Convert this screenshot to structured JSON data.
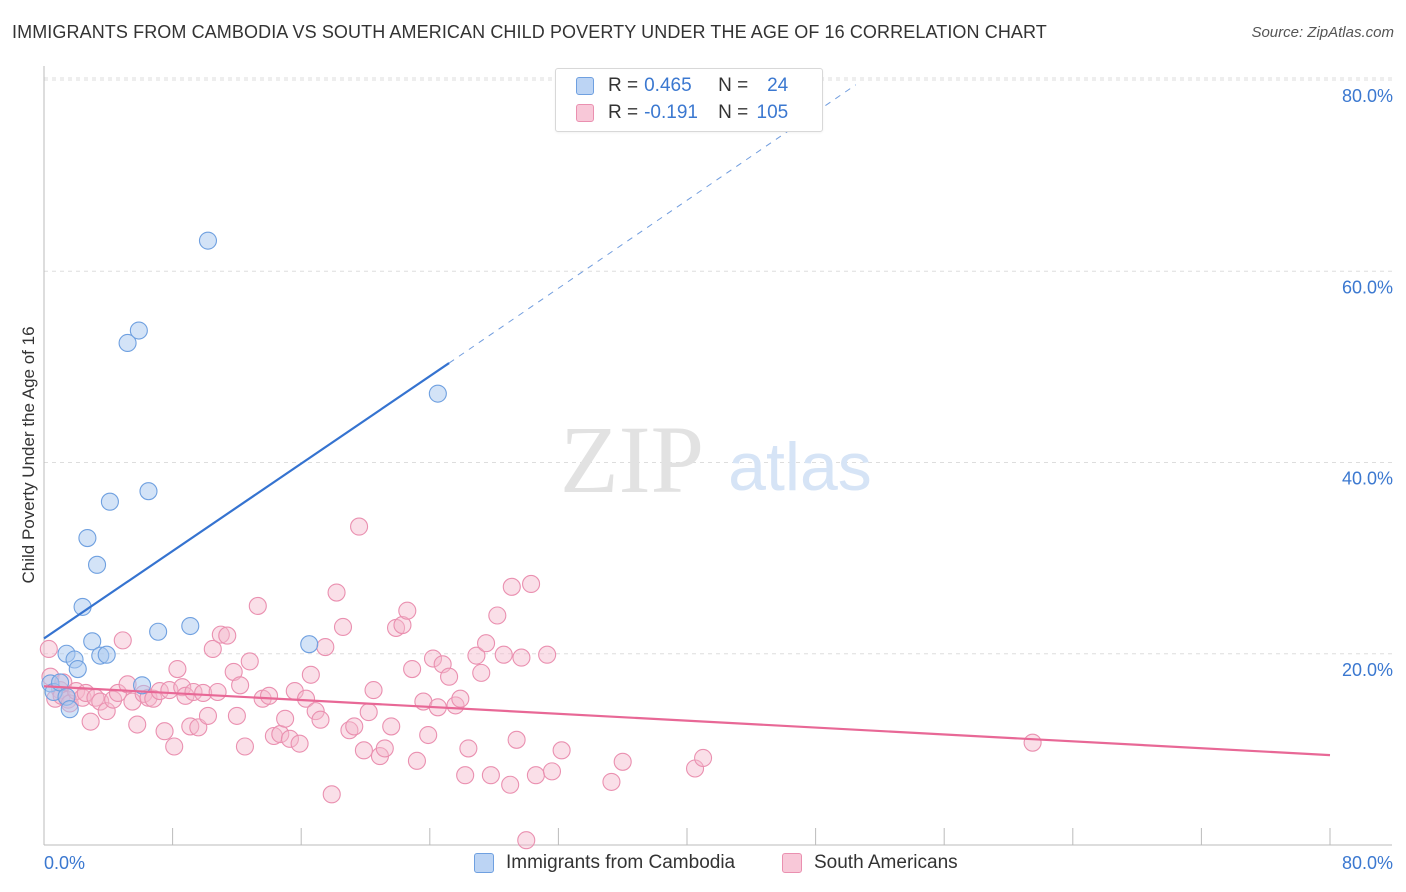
{
  "header": {
    "title": "IMMIGRANTS FROM CAMBODIA VS SOUTH AMERICAN CHILD POVERTY UNDER THE AGE OF 16 CORRELATION CHART",
    "source": "Source: ZipAtlas.com"
  },
  "watermark": {
    "zip": "ZIP",
    "atlas": "atlas"
  },
  "stats": {
    "r_label": "R =",
    "n_label": "N =",
    "rows": [
      {
        "r": "0.465",
        "n": "24"
      },
      {
        "r": "-0.191",
        "n": "105"
      }
    ]
  },
  "colors": {
    "blue_fill": "#a8c8f0",
    "blue_stroke": "#6fa0e0",
    "blue_line": "#3573d0",
    "pink_fill": "#f5b8cc",
    "pink_stroke": "#ea90b0",
    "pink_line": "#e86896",
    "axis_label": "#3b78d0",
    "grid": "#dddddd"
  },
  "chart_data": {
    "type": "scatter",
    "title": "IMMIGRANTS FROM CAMBODIA VS SOUTH AMERICAN CHILD POVERTY UNDER THE AGE OF 16 CORRELATION CHART",
    "xlabel": "",
    "ylabel": "Child Poverty Under the Age of 16",
    "xlim": [
      0,
      80
    ],
    "ylim": [
      0,
      80
    ],
    "x_tick_labels": [
      "0.0%",
      "80.0%"
    ],
    "y_tick_labels": [
      "20.0%",
      "40.0%",
      "60.0%",
      "80.0%"
    ],
    "y_ticks": [
      20,
      40,
      60,
      80
    ],
    "grid": true,
    "legend_position": "bottom-center",
    "series": [
      {
        "name": "Immigrants from Cambodia",
        "color": "blue",
        "r": 0.465,
        "n": 24,
        "trend": {
          "x_start": 0,
          "y_start": 21.6,
          "x_end": 25.2,
          "y_end": 50.4,
          "dashed_to_x": 50.5,
          "dashed_to_y": 79.5
        },
        "points": [
          [
            0.4,
            16.9
          ],
          [
            0.6,
            16.0
          ],
          [
            1.0,
            17.0
          ],
          [
            1.4,
            15.5
          ],
          [
            1.4,
            20.0
          ],
          [
            1.6,
            14.2
          ],
          [
            1.9,
            19.4
          ],
          [
            2.1,
            18.4
          ],
          [
            2.4,
            24.9
          ],
          [
            2.7,
            32.1
          ],
          [
            3.0,
            21.3
          ],
          [
            3.3,
            29.3
          ],
          [
            3.5,
            19.8
          ],
          [
            3.9,
            19.9
          ],
          [
            4.1,
            35.9
          ],
          [
            5.2,
            52.5
          ],
          [
            5.9,
            53.8
          ],
          [
            6.1,
            16.7
          ],
          [
            6.5,
            37.0
          ],
          [
            7.1,
            22.3
          ],
          [
            9.1,
            22.9
          ],
          [
            10.2,
            63.2
          ],
          [
            16.5,
            21.0
          ],
          [
            24.5,
            47.2
          ]
        ]
      },
      {
        "name": "South Americans",
        "color": "pink",
        "r": -0.191,
        "n": 105,
        "trend": {
          "x_start": 0,
          "y_start": 16.6,
          "x_end": 80,
          "y_end": 9.4
        },
        "points": [
          [
            0.3,
            20.5
          ],
          [
            0.4,
            17.6
          ],
          [
            0.7,
            15.3
          ],
          [
            1.0,
            16.2
          ],
          [
            1.1,
            15.6
          ],
          [
            1.2,
            17.0
          ],
          [
            1.5,
            15.2
          ],
          [
            1.6,
            14.8
          ],
          [
            2.0,
            16.1
          ],
          [
            2.4,
            15.4
          ],
          [
            2.6,
            15.9
          ],
          [
            2.9,
            12.9
          ],
          [
            3.2,
            15.4
          ],
          [
            3.5,
            15.0
          ],
          [
            3.9,
            14.0
          ],
          [
            4.3,
            15.2
          ],
          [
            4.6,
            15.9
          ],
          [
            4.9,
            21.4
          ],
          [
            5.2,
            16.8
          ],
          [
            5.5,
            15.0
          ],
          [
            5.8,
            12.6
          ],
          [
            6.2,
            15.8
          ],
          [
            6.5,
            15.4
          ],
          [
            6.8,
            15.3
          ],
          [
            7.2,
            16.1
          ],
          [
            7.5,
            11.9
          ],
          [
            7.8,
            16.2
          ],
          [
            8.1,
            10.3
          ],
          [
            8.3,
            18.4
          ],
          [
            8.6,
            16.5
          ],
          [
            8.8,
            15.6
          ],
          [
            9.1,
            12.4
          ],
          [
            9.3,
            16.0
          ],
          [
            9.6,
            12.3
          ],
          [
            9.9,
            15.9
          ],
          [
            10.2,
            13.5
          ],
          [
            10.5,
            20.5
          ],
          [
            10.8,
            16.0
          ],
          [
            11.0,
            22.0
          ],
          [
            11.4,
            21.9
          ],
          [
            11.8,
            18.1
          ],
          [
            12.0,
            13.5
          ],
          [
            12.2,
            16.7
          ],
          [
            12.5,
            10.3
          ],
          [
            12.8,
            19.2
          ],
          [
            13.3,
            25.0
          ],
          [
            13.6,
            15.3
          ],
          [
            14.0,
            15.6
          ],
          [
            14.3,
            11.4
          ],
          [
            14.7,
            11.6
          ],
          [
            15.0,
            13.2
          ],
          [
            15.3,
            11.1
          ],
          [
            15.6,
            16.1
          ],
          [
            15.9,
            10.6
          ],
          [
            16.3,
            15.3
          ],
          [
            16.6,
            17.8
          ],
          [
            16.9,
            14.0
          ],
          [
            17.2,
            13.1
          ],
          [
            17.5,
            20.7
          ],
          [
            17.9,
            5.3
          ],
          [
            18.2,
            26.4
          ],
          [
            18.6,
            22.8
          ],
          [
            19.0,
            12.0
          ],
          [
            19.3,
            12.4
          ],
          [
            19.6,
            33.3
          ],
          [
            19.9,
            9.9
          ],
          [
            20.2,
            13.9
          ],
          [
            20.5,
            16.2
          ],
          [
            20.9,
            9.3
          ],
          [
            21.2,
            10.1
          ],
          [
            21.6,
            12.4
          ],
          [
            21.9,
            22.7
          ],
          [
            22.3,
            23.0
          ],
          [
            22.6,
            24.5
          ],
          [
            22.9,
            18.4
          ],
          [
            23.2,
            8.8
          ],
          [
            23.6,
            15.0
          ],
          [
            23.9,
            11.5
          ],
          [
            24.2,
            19.5
          ],
          [
            24.5,
            14.4
          ],
          [
            24.8,
            18.9
          ],
          [
            25.2,
            17.6
          ],
          [
            25.6,
            14.6
          ],
          [
            25.9,
            15.3
          ],
          [
            26.2,
            7.3
          ],
          [
            26.4,
            10.1
          ],
          [
            26.9,
            19.8
          ],
          [
            27.2,
            18.0
          ],
          [
            27.5,
            21.1
          ],
          [
            27.8,
            7.3
          ],
          [
            28.2,
            24.0
          ],
          [
            28.6,
            19.9
          ],
          [
            29.0,
            6.3
          ],
          [
            29.1,
            27.0
          ],
          [
            29.4,
            11.0
          ],
          [
            29.7,
            19.6
          ],
          [
            30.0,
            0.5
          ],
          [
            30.3,
            27.3
          ],
          [
            30.6,
            7.3
          ],
          [
            31.3,
            19.9
          ],
          [
            31.6,
            7.7
          ],
          [
            32.2,
            9.9
          ],
          [
            35.3,
            6.6
          ],
          [
            36.0,
            8.7
          ],
          [
            40.5,
            8.0
          ],
          [
            41.0,
            9.1
          ],
          [
            61.5,
            10.7
          ]
        ]
      }
    ]
  },
  "legend": {
    "items": [
      {
        "label": "Immigrants from Cambodia"
      },
      {
        "label": "South Americans"
      }
    ]
  }
}
